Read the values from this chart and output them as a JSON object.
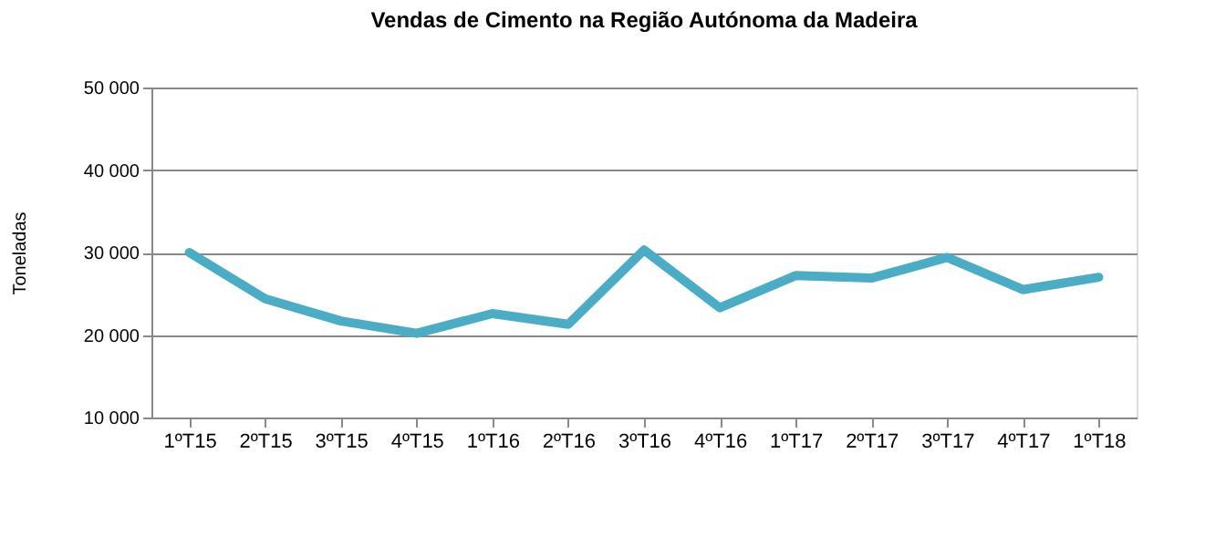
{
  "chart_data": {
    "type": "line",
    "title": "Vendas de Cimento na Região Autónoma  da Madeira",
    "ylabel": "Toneladas",
    "categories": [
      "1ºT15",
      "2ºT15",
      "3ºT15",
      "4ºT15",
      "1ºT16",
      "2ºT16",
      "3ºT16",
      "4ºT16",
      "1ºT17",
      "2ºT17",
      "3ºT17",
      "4ºT17",
      "1ºT18"
    ],
    "series": [
      {
        "color": "#4bacc6",
        "values": [
          30000,
          24400,
          21700,
          20200,
          22600,
          21300,
          30300,
          23300,
          27200,
          26900,
          29400,
          25500,
          27000
        ]
      }
    ],
    "ylim": [
      10000,
      50000
    ],
    "yticks": [
      {
        "value": 10000,
        "label": "10 000"
      },
      {
        "value": 20000,
        "label": "20 000"
      },
      {
        "value": 30000,
        "label": "30 000"
      },
      {
        "value": 40000,
        "label": "40 000"
      },
      {
        "value": 50000,
        "label": "50 000"
      }
    ],
    "grid": "y",
    "legend": false,
    "marker": "none",
    "line_style": "solid"
  }
}
